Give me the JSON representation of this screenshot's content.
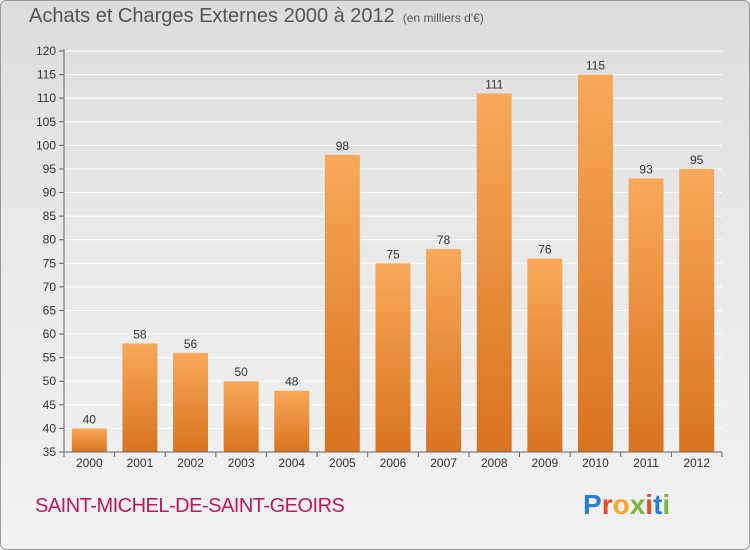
{
  "header": {
    "title": "Achats et Charges Externes 2000 à 2012",
    "unit": "(en milliers d'€)"
  },
  "footer": {
    "commune": "SAINT-MICHEL-DE-SAINT-GEOIRS",
    "logo_letters": [
      "P",
      "r",
      "o",
      "x",
      "i",
      "t",
      "i"
    ],
    "logo_colors": [
      "#2a7fd4",
      "#e84b2a",
      "#f5a623",
      "#7cb342",
      "#e84b2a",
      "#2a7fd4",
      "#7cb342"
    ]
  },
  "chart_data": {
    "type": "bar",
    "categories": [
      "2000",
      "2001",
      "2002",
      "2003",
      "2004",
      "2005",
      "2006",
      "2007",
      "2008",
      "2009",
      "2010",
      "2011",
      "2012"
    ],
    "values": [
      40,
      58,
      56,
      50,
      48,
      98,
      75,
      78,
      111,
      76,
      115,
      93,
      95
    ],
    "ylim": [
      35,
      120
    ],
    "yticks": [
      35,
      40,
      45,
      50,
      55,
      60,
      65,
      70,
      75,
      80,
      85,
      90,
      95,
      100,
      105,
      110,
      115,
      120
    ],
    "grid": true,
    "bar_color_top": "#f7a959",
    "bar_color_bottom": "#d9731f"
  }
}
